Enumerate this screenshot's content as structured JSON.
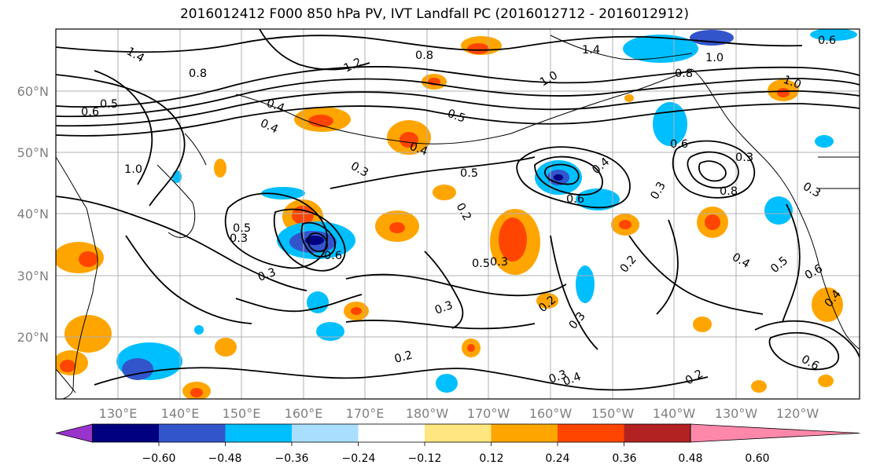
{
  "title": "2016012412 F000 850 hPa PV, IVT Landfall PC (2016012712 - 2016012912)",
  "map": {
    "projection": "PlateCarree",
    "lon_range": [
      120,
      250
    ],
    "lat_range": [
      10,
      70
    ],
    "lon_tick_labels": [
      "130°E",
      "140°E",
      "150°E",
      "160°E",
      "170°E",
      "180°W",
      "170°W",
      "160°W",
      "150°W",
      "140°W",
      "130°W",
      "120°W"
    ],
    "lat_tick_labels": [
      "20°N",
      "30°N",
      "40°N",
      "50°N",
      "60°N"
    ],
    "gridlines": true,
    "contour_labels": [
      "1.4",
      "1.0",
      "0.8",
      "0.5",
      "0.6",
      "0.5",
      "0.3",
      "0.3",
      "0.3",
      "0.2",
      "0.4",
      "0.3",
      "0.5",
      "0.2",
      "0.4",
      "0.5",
      "0.6",
      "0.4",
      "0.8",
      "1.2",
      "1.4",
      "1.0",
      "0.8",
      "1.0",
      "0.4",
      "0.3",
      "0.6",
      "0.5",
      "0.2",
      "0.3",
      "0.2",
      "0.3",
      "0.6",
      "0.4",
      "0.3",
      "1.0",
      "0.6",
      "0.2",
      "0.3",
      "0.8",
      "0.6",
      "0.3",
      "0.4",
      "0.5",
      "0.6",
      "0.4"
    ]
  },
  "colorbar": {
    "colors": [
      "#9933cc",
      "#000080",
      "#3355cc",
      "#00bfff",
      "#aadeff",
      "#ffffff",
      "#ffe680",
      "#ffa500",
      "#ff4500",
      "#b22222",
      "#ff88aa"
    ],
    "tick_labels": [
      "−0.60",
      "−0.48",
      "−0.36",
      "−0.24",
      "−0.12",
      "0.12",
      "0.24",
      "0.36",
      "0.48",
      "0.60"
    ],
    "extend": "both"
  }
}
